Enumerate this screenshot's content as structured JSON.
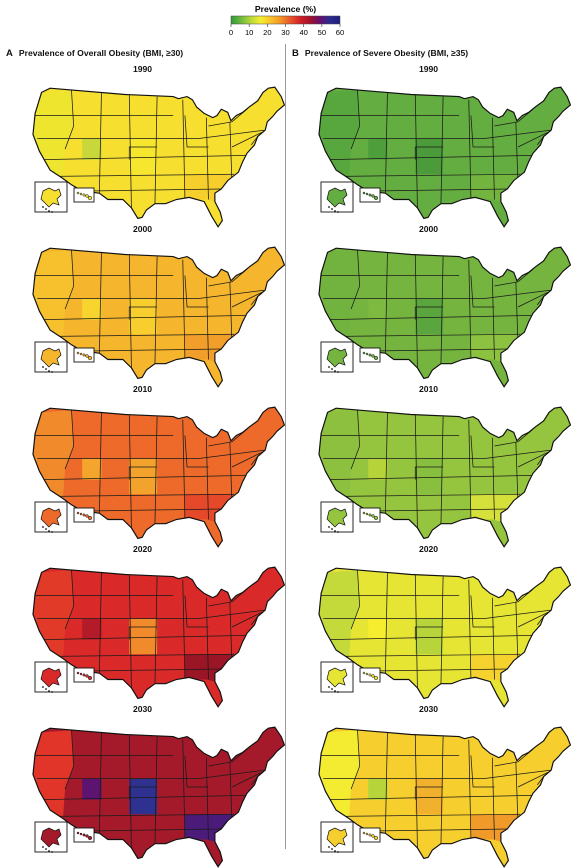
{
  "legend": {
    "title": "Prevalence (%)",
    "ticks": [
      "0",
      "10",
      "20",
      "30",
      "40",
      "50",
      "60"
    ],
    "stops": [
      "#2f9a3a",
      "#6db83e",
      "#b8d83a",
      "#f6ee2f",
      "#f8c22d",
      "#f2962a",
      "#e8542a",
      "#d21f27",
      "#a3112a",
      "#65106f",
      "#2b2a8f",
      "#1c1e7a"
    ]
  },
  "panels": [
    {
      "letter": "A",
      "title": "Prevalence of Overall Obesity (BMI, ≥30)",
      "maps": [
        {
          "year": "1990",
          "fill": "#f6df2f",
          "west": "#eee52e",
          "mid": "#f6e62e",
          "southeast": "#f6cf2c",
          "accent": "#c8d83a"
        },
        {
          "year": "2000",
          "fill": "#f5b52c",
          "west": "#f6c12d",
          "mid": "#f7ce2e",
          "southeast": "#f19e2a",
          "accent": "#f7d52e"
        },
        {
          "year": "2010",
          "fill": "#ee6a2a",
          "west": "#f08a2b",
          "mid": "#f3a32c",
          "southeast": "#e6482a",
          "accent": "#f4a62c"
        },
        {
          "year": "2020",
          "fill": "#d92a29",
          "west": "#e13a28",
          "mid": "#f08a2b",
          "southeast": "#9a1526",
          "accent": "#b41b28"
        },
        {
          "year": "2030",
          "fill": "#a51a2a",
          "west": "#e03528",
          "mid": "#2e3190",
          "southeast": "#4a1b78",
          "accent": "#5c1470"
        }
      ]
    },
    {
      "letter": "B",
      "title": "Prevalence of Severe Obesity (BMI, ≥35)",
      "maps": [
        {
          "year": "1990",
          "fill": "#64ad40",
          "west": "#58a63e",
          "mid": "#4c9b3b",
          "southeast": "#72b43e",
          "accent": "#4f9e3c"
        },
        {
          "year": "2000",
          "fill": "#74b43f",
          "west": "#72b33f",
          "mid": "#5aa53d",
          "southeast": "#8cc23f",
          "accent": "#7dba3f"
        },
        {
          "year": "2010",
          "fill": "#95c43e",
          "west": "#8cc03e",
          "mid": "#88bf3e",
          "southeast": "#d6e03a",
          "accent": "#b6d33a"
        },
        {
          "year": "2020",
          "fill": "#e6e534",
          "west": "#c4da3a",
          "mid": "#b7d53a",
          "southeast": "#f6d22e",
          "accent": "#f6ed2f"
        },
        {
          "year": "2030",
          "fill": "#f6cf2e",
          "west": "#f3ec30",
          "mid": "#f2b12c",
          "southeast": "#f09a2a",
          "accent": "#b7d53a"
        }
      ]
    }
  ]
}
